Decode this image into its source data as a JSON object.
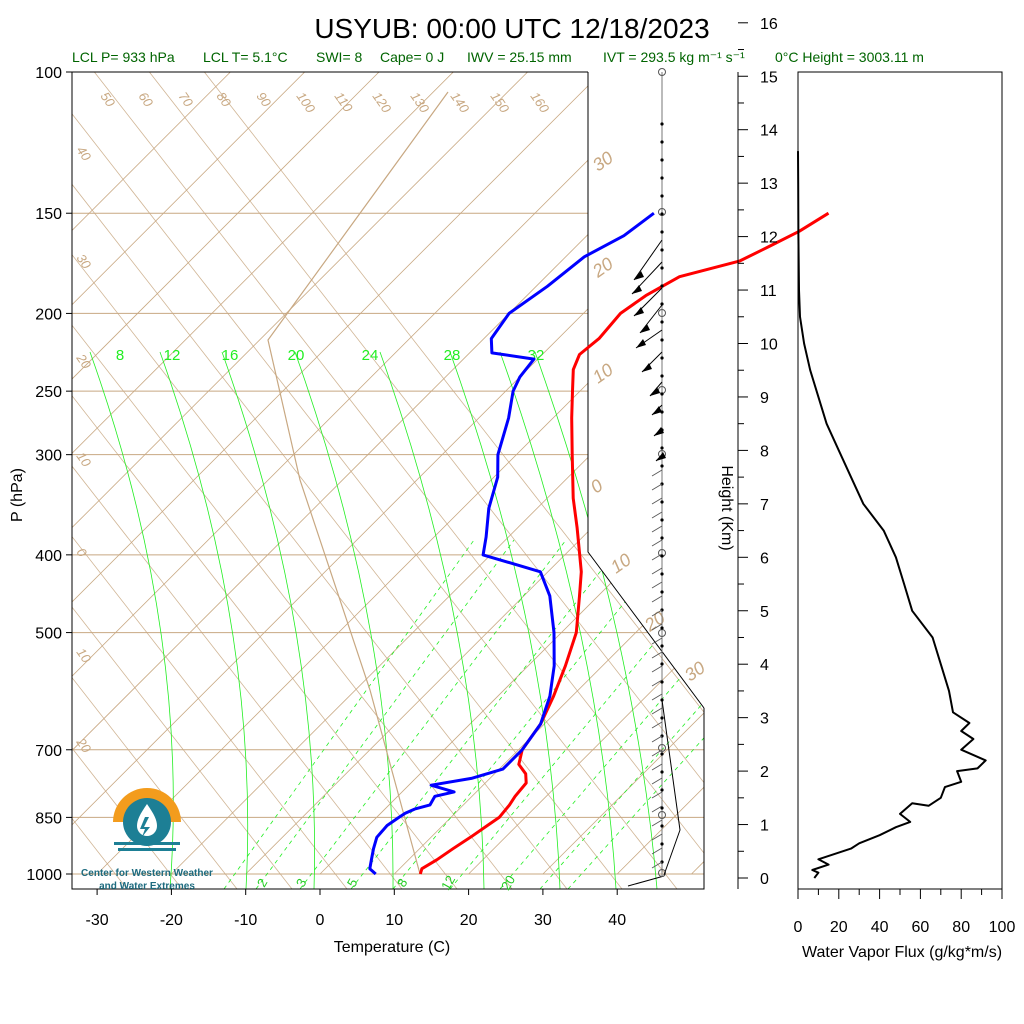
{
  "title": "USYUB: 00:00 UTC 12/18/2023",
  "subtitle": {
    "lcl_p": "LCL P= 933 hPa",
    "lcl_t": "LCL T= 5.1°C",
    "swi": "SWI= 8",
    "cape": "Cape= 0 J",
    "iwv": "IWV = 25.15 mm",
    "ivt": "IVT = 293.5 kg m⁻¹ s⁻¹",
    "freezing": "0°C Height = 3003.11 m"
  },
  "logo": {
    "line1": "Center for Western Weather",
    "line2": "and Water Extremes"
  },
  "colors": {
    "temperature": "#ff0000",
    "dewpoint": "#0000ff",
    "isotherm": "#c8a882",
    "mixing_ratio": "#22ee22",
    "flux": "#000000"
  },
  "chart_data": [
    {
      "type": "line",
      "name": "skew-t",
      "title": "USYUB: 00:00 UTC 12/18/2023",
      "xlabel": "Temperature (C)",
      "ylabel": "P (hPa)",
      "y_scale": "log",
      "ylim": [
        1000,
        100
      ],
      "xlim": [
        -35,
        52
      ],
      "x_ticks": [
        "-30",
        "-20",
        "-10",
        "0",
        "10",
        "20",
        "30",
        "40"
      ],
      "y_ticks": [
        "100",
        "150",
        "200",
        "250",
        "300",
        "400",
        "500",
        "700",
        "850",
        "1000"
      ],
      "mixing_ratio_labels": [
        "8",
        "12",
        "16",
        "20",
        "24",
        "28",
        "32"
      ],
      "mixing_ratio_labels_bottom": [
        "2",
        "3",
        "5",
        "8",
        "12",
        "20"
      ],
      "isotherm_labels": [
        "50",
        "60",
        "70",
        "80",
        "90",
        "100",
        "110",
        "120",
        "130",
        "140",
        "150",
        "160"
      ],
      "skewed_labels_left": [
        "40",
        "30",
        "20",
        "10",
        "0",
        "10",
        "20"
      ],
      "skewed_labels_right": [
        "30",
        "20",
        "10",
        "0",
        "10",
        "20",
        "30"
      ],
      "series": [
        {
          "name": "Temperature",
          "points": [
            [
              1000,
              13.5
            ],
            [
              985,
              13.0
            ],
            [
              960,
              13.8
            ],
            [
              930,
              14.5
            ],
            [
              900,
              15.3
            ],
            [
              870,
              16.0
            ],
            [
              850,
              16.5
            ],
            [
              820,
              16.2
            ],
            [
              800,
              15.8
            ],
            [
              770,
              15.5
            ],
            [
              750,
              14.2
            ],
            [
              730,
              12.0
            ],
            [
              700,
              10.5
            ],
            [
              650,
              9.5
            ],
            [
              600,
              7.5
            ],
            [
              550,
              5.0
            ],
            [
              500,
              2.0
            ],
            [
              450,
              -2.5
            ],
            [
              420,
              -5.5
            ],
            [
              400,
              -8.0
            ],
            [
              370,
              -12.0
            ],
            [
              340,
              -16.5
            ],
            [
              300,
              -22.5
            ],
            [
              270,
              -27.5
            ],
            [
              250,
              -31.0
            ],
            [
              235,
              -33.8
            ],
            [
              225,
              -35.0
            ],
            [
              215,
              -34.5
            ],
            [
              200,
              -35.0
            ],
            [
              190,
              -34.0
            ],
            [
              180,
              -32.0
            ],
            [
              172,
              -26.0
            ],
            [
              165,
              -24.0
            ],
            [
              158,
              -22.0
            ],
            [
              150,
              -20.5
            ]
          ]
        },
        {
          "name": "Dewpoint",
          "points": [
            [
              1000,
              7.5
            ],
            [
              985,
              6.0
            ],
            [
              960,
              5.0
            ],
            [
              930,
              3.8
            ],
            [
              900,
              2.7
            ],
            [
              870,
              2.5
            ],
            [
              850,
              3.0
            ],
            [
              840,
              3.3
            ],
            [
              830,
              4.0
            ],
            [
              820,
              5.5
            ],
            [
              800,
              5.0
            ],
            [
              790,
              7.0
            ],
            [
              775,
              3.0
            ],
            [
              760,
              7.5
            ],
            [
              740,
              10.5
            ],
            [
              720,
              10.5
            ],
            [
              700,
              10.5
            ],
            [
              650,
              9.5
            ],
            [
              600,
              7.0
            ],
            [
              550,
              3.5
            ],
            [
              500,
              -1.0
            ],
            [
              450,
              -6.5
            ],
            [
              420,
              -11.0
            ],
            [
              400,
              -21.0
            ],
            [
              380,
              -23.0
            ],
            [
              350,
              -26.5
            ],
            [
              320,
              -29.5
            ],
            [
              300,
              -32.5
            ],
            [
              270,
              -36.0
            ],
            [
              250,
              -39.0
            ],
            [
              240,
              -40.0
            ],
            [
              228,
              -40.5
            ],
            [
              224,
              -47.0
            ],
            [
              215,
              -49.0
            ],
            [
              200,
              -50.0
            ],
            [
              185,
              -48.5
            ],
            [
              170,
              -47.5
            ],
            [
              160,
              -45.0
            ],
            [
              150,
              -44.0
            ]
          ]
        }
      ]
    },
    {
      "type": "line",
      "name": "water-vapor-flux",
      "xlabel": "Water Vapor Flux (g/kg*m/s)",
      "ylabel": "Height (Km)",
      "xlim": [
        0,
        100
      ],
      "ylim": [
        0,
        16.5
      ],
      "x_ticks": [
        "0",
        "20",
        "40",
        "60",
        "80",
        "100"
      ],
      "y_ticks": [
        "0",
        "1",
        "2",
        "3",
        "4",
        "5",
        "6",
        "7",
        "8",
        "9",
        "10",
        "11",
        "12",
        "13",
        "14",
        "15",
        "16"
      ],
      "series": [
        {
          "name": "Water Vapor Flux",
          "points": [
            [
              8,
              0.0
            ],
            [
              10,
              0.1
            ],
            [
              7,
              0.15
            ],
            [
              15,
              0.25
            ],
            [
              10,
              0.35
            ],
            [
              26,
              0.55
            ],
            [
              30,
              0.65
            ],
            [
              40,
              0.8
            ],
            [
              48,
              0.95
            ],
            [
              55,
              1.05
            ],
            [
              50,
              1.2
            ],
            [
              56,
              1.4
            ],
            [
              64,
              1.35
            ],
            [
              70,
              1.5
            ],
            [
              72,
              1.7
            ],
            [
              80,
              1.8
            ],
            [
              78,
              2.0
            ],
            [
              88,
              2.05
            ],
            [
              92,
              2.2
            ],
            [
              80,
              2.4
            ],
            [
              86,
              2.6
            ],
            [
              80,
              2.75
            ],
            [
              84,
              2.9
            ],
            [
              76,
              3.1
            ],
            [
              74,
              3.5
            ],
            [
              70,
              4.0
            ],
            [
              66,
              4.5
            ],
            [
              56,
              5.0
            ],
            [
              52,
              5.5
            ],
            [
              48,
              6.0
            ],
            [
              42,
              6.5
            ],
            [
              32,
              7.0
            ],
            [
              26,
              7.5
            ],
            [
              20,
              8.0
            ],
            [
              14,
              8.5
            ],
            [
              10,
              9.0
            ],
            [
              6,
              9.5
            ],
            [
              3,
              10.0
            ],
            [
              1,
              10.5
            ],
            [
              0.5,
              11.0
            ],
            [
              0.2,
              12.0
            ],
            [
              0.1,
              13.0
            ],
            [
              0,
              13.6
            ]
          ]
        }
      ]
    }
  ]
}
